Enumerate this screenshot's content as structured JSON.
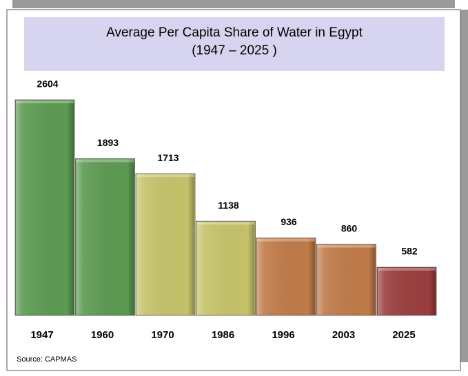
{
  "chart_data": {
    "type": "bar",
    "title": "Average Per Capita Share of Water in Egypt",
    "subtitle": "(1947 – 2025 )",
    "categories": [
      "1947",
      "1960",
      "1970",
      "1986",
      "1996",
      "2003",
      "2025"
    ],
    "values": [
      2604,
      1893,
      1713,
      1138,
      936,
      860,
      582
    ],
    "colors": [
      "#5c9a52",
      "#5c9a52",
      "#c6c26a",
      "#c6c26a",
      "#c07a48",
      "#c07a48",
      "#9a3e3e"
    ],
    "source": "Source: CAPMAS"
  }
}
